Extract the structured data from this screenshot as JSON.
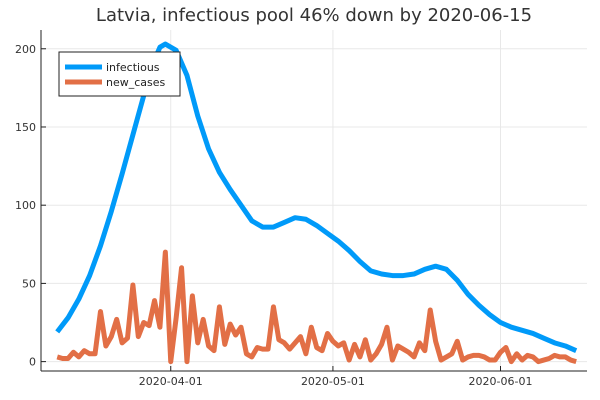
{
  "chart_data": {
    "type": "line",
    "title": "Latvia, infectious pool 46% down by 2020-06-15",
    "xlabel": "",
    "ylabel": "",
    "x_range": [
      "2020-03-08",
      "2020-06-17"
    ],
    "ylim": [
      -6,
      212
    ],
    "grid": true,
    "legend_position": "top-left",
    "x_ticks": [
      {
        "date": "2020-04-01",
        "label": "2020-04-01"
      },
      {
        "date": "2020-05-01",
        "label": "2020-05-01"
      },
      {
        "date": "2020-06-01",
        "label": "2020-06-01"
      }
    ],
    "y_ticks": [
      {
        "value": 0,
        "label": "0"
      },
      {
        "value": 50,
        "label": "50"
      },
      {
        "value": 100,
        "label": "100"
      },
      {
        "value": 150,
        "label": "150"
      },
      {
        "value": 200,
        "label": "200"
      }
    ],
    "series": [
      {
        "name": "infectious",
        "color": "#009af9",
        "points": [
          [
            "2020-03-11",
            19
          ],
          [
            "2020-03-13",
            28
          ],
          [
            "2020-03-15",
            40
          ],
          [
            "2020-03-17",
            55
          ],
          [
            "2020-03-19",
            74
          ],
          [
            "2020-03-21",
            96
          ],
          [
            "2020-03-23",
            120
          ],
          [
            "2020-03-25",
            145
          ],
          [
            "2020-03-27",
            170
          ],
          [
            "2020-03-29",
            193
          ],
          [
            "2020-03-30",
            201
          ],
          [
            "2020-03-31",
            203
          ],
          [
            "2020-04-02",
            199
          ],
          [
            "2020-04-04",
            183
          ],
          [
            "2020-04-06",
            157
          ],
          [
            "2020-04-08",
            136
          ],
          [
            "2020-04-10",
            121
          ],
          [
            "2020-04-12",
            110
          ],
          [
            "2020-04-14",
            100
          ],
          [
            "2020-04-16",
            90
          ],
          [
            "2020-04-18",
            86
          ],
          [
            "2020-04-20",
            86
          ],
          [
            "2020-04-22",
            89
          ],
          [
            "2020-04-24",
            92
          ],
          [
            "2020-04-26",
            91
          ],
          [
            "2020-04-28",
            87
          ],
          [
            "2020-04-30",
            82
          ],
          [
            "2020-05-02",
            77
          ],
          [
            "2020-05-04",
            71
          ],
          [
            "2020-05-06",
            64
          ],
          [
            "2020-05-08",
            58
          ],
          [
            "2020-05-10",
            56
          ],
          [
            "2020-05-12",
            55
          ],
          [
            "2020-05-14",
            55
          ],
          [
            "2020-05-16",
            56
          ],
          [
            "2020-05-18",
            59
          ],
          [
            "2020-05-20",
            61
          ],
          [
            "2020-05-22",
            59
          ],
          [
            "2020-05-24",
            52
          ],
          [
            "2020-05-26",
            43
          ],
          [
            "2020-05-28",
            36
          ],
          [
            "2020-05-30",
            30
          ],
          [
            "2020-06-01",
            25
          ],
          [
            "2020-06-03",
            22
          ],
          [
            "2020-06-05",
            20
          ],
          [
            "2020-06-07",
            18
          ],
          [
            "2020-06-09",
            15
          ],
          [
            "2020-06-11",
            12
          ],
          [
            "2020-06-13",
            10
          ],
          [
            "2020-06-15",
            7
          ]
        ]
      },
      {
        "name": "new_cases",
        "color": "#e26f46",
        "points": [
          [
            "2020-03-11",
            3
          ],
          [
            "2020-03-12",
            2
          ],
          [
            "2020-03-13",
            2
          ],
          [
            "2020-03-14",
            6
          ],
          [
            "2020-03-15",
            3
          ],
          [
            "2020-03-16",
            7
          ],
          [
            "2020-03-17",
            5
          ],
          [
            "2020-03-18",
            5
          ],
          [
            "2020-03-19",
            32
          ],
          [
            "2020-03-20",
            10
          ],
          [
            "2020-03-21",
            16
          ],
          [
            "2020-03-22",
            27
          ],
          [
            "2020-03-23",
            12
          ],
          [
            "2020-03-24",
            15
          ],
          [
            "2020-03-25",
            49
          ],
          [
            "2020-03-26",
            16
          ],
          [
            "2020-03-27",
            25
          ],
          [
            "2020-03-28",
            23
          ],
          [
            "2020-03-29",
            39
          ],
          [
            "2020-03-30",
            22
          ],
          [
            "2020-03-31",
            70
          ],
          [
            "2020-04-01",
            0
          ],
          [
            "2020-04-02",
            28
          ],
          [
            "2020-04-03",
            60
          ],
          [
            "2020-04-04",
            0
          ],
          [
            "2020-04-05",
            42
          ],
          [
            "2020-04-06",
            12
          ],
          [
            "2020-04-07",
            27
          ],
          [
            "2020-04-08",
            10
          ],
          [
            "2020-04-09",
            7
          ],
          [
            "2020-04-10",
            35
          ],
          [
            "2020-04-11",
            11
          ],
          [
            "2020-04-12",
            24
          ],
          [
            "2020-04-13",
            17
          ],
          [
            "2020-04-14",
            22
          ],
          [
            "2020-04-15",
            5
          ],
          [
            "2020-04-16",
            3
          ],
          [
            "2020-04-17",
            9
          ],
          [
            "2020-04-18",
            8
          ],
          [
            "2020-04-19",
            8
          ],
          [
            "2020-04-20",
            35
          ],
          [
            "2020-04-21",
            14
          ],
          [
            "2020-04-22",
            12
          ],
          [
            "2020-04-23",
            8
          ],
          [
            "2020-04-24",
            12
          ],
          [
            "2020-04-25",
            16
          ],
          [
            "2020-04-26",
            5
          ],
          [
            "2020-04-27",
            22
          ],
          [
            "2020-04-28",
            9
          ],
          [
            "2020-04-29",
            7
          ],
          [
            "2020-04-30",
            18
          ],
          [
            "2020-05-01",
            13
          ],
          [
            "2020-05-02",
            10
          ],
          [
            "2020-05-03",
            12
          ],
          [
            "2020-05-04",
            1
          ],
          [
            "2020-05-05",
            11
          ],
          [
            "2020-05-06",
            3
          ],
          [
            "2020-05-07",
            14
          ],
          [
            "2020-05-08",
            1
          ],
          [
            "2020-05-09",
            5
          ],
          [
            "2020-05-10",
            11
          ],
          [
            "2020-05-11",
            22
          ],
          [
            "2020-05-12",
            1
          ],
          [
            "2020-05-13",
            10
          ],
          [
            "2020-05-14",
            8
          ],
          [
            "2020-05-15",
            6
          ],
          [
            "2020-05-16",
            3
          ],
          [
            "2020-05-17",
            12
          ],
          [
            "2020-05-18",
            7
          ],
          [
            "2020-05-19",
            33
          ],
          [
            "2020-05-20",
            13
          ],
          [
            "2020-05-21",
            1
          ],
          [
            "2020-05-22",
            3
          ],
          [
            "2020-05-23",
            5
          ],
          [
            "2020-05-24",
            13
          ],
          [
            "2020-05-25",
            1
          ],
          [
            "2020-05-26",
            3
          ],
          [
            "2020-05-27",
            4
          ],
          [
            "2020-05-28",
            4
          ],
          [
            "2020-05-29",
            3
          ],
          [
            "2020-05-30",
            1
          ],
          [
            "2020-05-31",
            1
          ],
          [
            "2020-06-01",
            6
          ],
          [
            "2020-06-02",
            9
          ],
          [
            "2020-06-03",
            0
          ],
          [
            "2020-06-04",
            5
          ],
          [
            "2020-06-05",
            1
          ],
          [
            "2020-06-06",
            4
          ],
          [
            "2020-06-07",
            3
          ],
          [
            "2020-06-08",
            0
          ],
          [
            "2020-06-09",
            1
          ],
          [
            "2020-06-10",
            2
          ],
          [
            "2020-06-11",
            4
          ],
          [
            "2020-06-12",
            3
          ],
          [
            "2020-06-13",
            3
          ],
          [
            "2020-06-14",
            1
          ],
          [
            "2020-06-15",
            0
          ]
        ]
      }
    ]
  }
}
